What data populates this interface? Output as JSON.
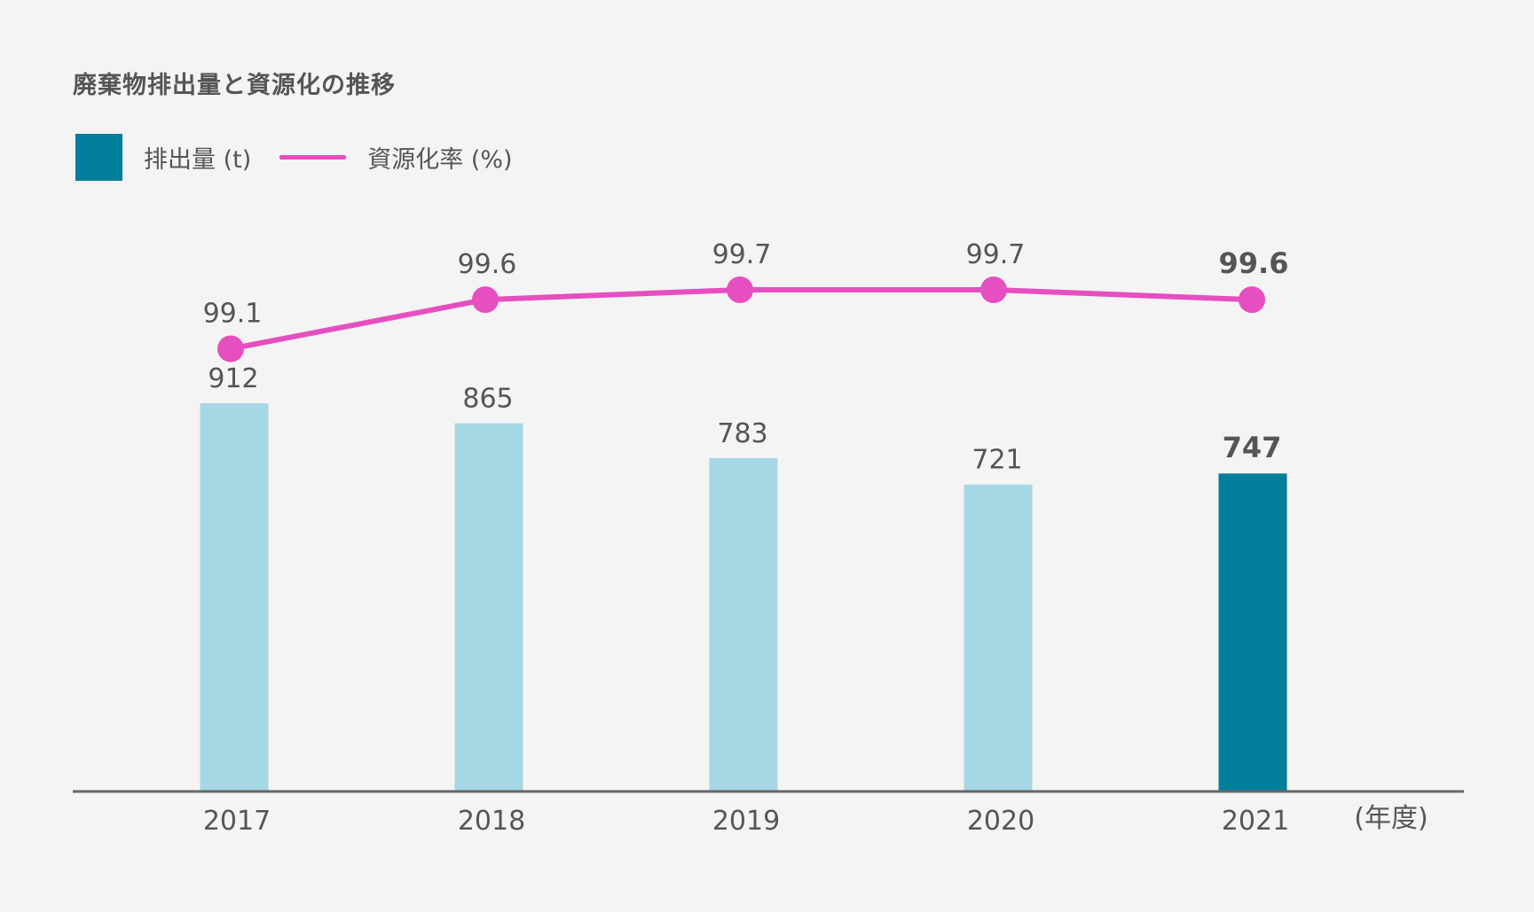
{
  "chart_data": {
    "type": "bar",
    "title": "廃棄物排出量と資源化の推移",
    "categories": [
      "2017",
      "2018",
      "2019",
      "2020",
      "2021"
    ],
    "x_unit_label": "(年度)",
    "series": [
      {
        "name": "排出量 (t)",
        "kind": "bar",
        "values": [
          912,
          865,
          783,
          721,
          747
        ],
        "color": "#a6d7e4",
        "highlight_color": "#007e9c",
        "highlight_index": 4
      },
      {
        "name": "資源化率 (%)",
        "kind": "line",
        "values": [
          99.1,
          99.6,
          99.7,
          99.7,
          99.6
        ],
        "value_labels": [
          "99.1",
          "99.6",
          "99.7",
          "99.7",
          "99.6"
        ],
        "color": "#e64fbf"
      }
    ],
    "grid": false,
    "legend_position": "top-left",
    "bar_ylim": [
      0,
      912
    ],
    "line_ylim": [
      98.5,
      99.7
    ]
  },
  "colors": {
    "background": "#f4f4f4",
    "text": "#555555",
    "axis": "#666666"
  }
}
